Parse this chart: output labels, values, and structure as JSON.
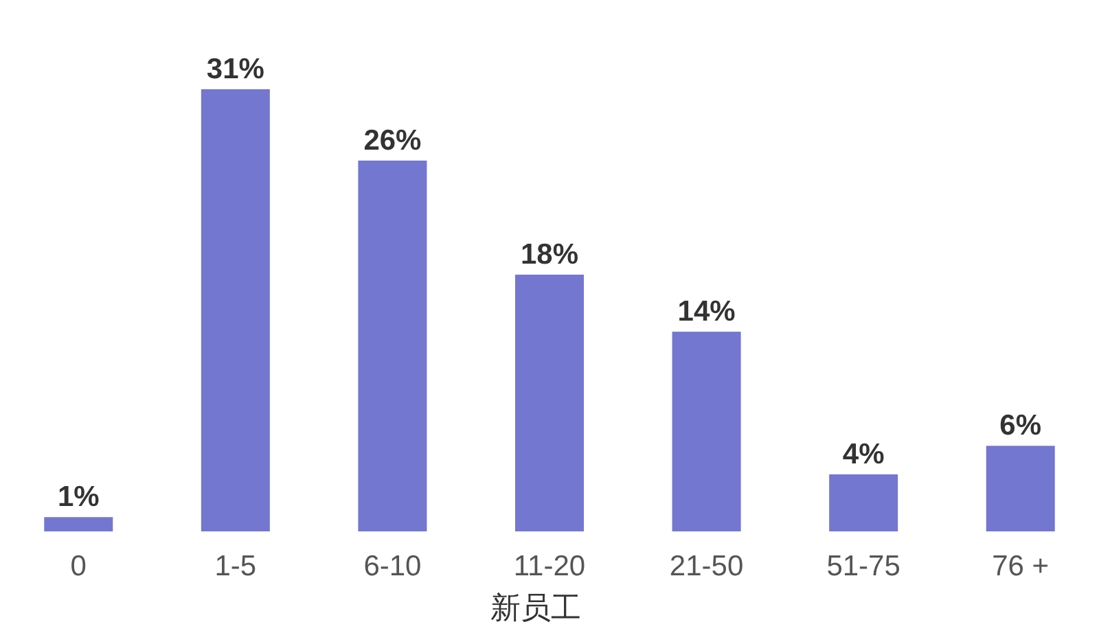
{
  "chart_data": {
    "type": "bar",
    "xlabel": "新员工",
    "categories": [
      "0",
      "1-5",
      "6-10",
      "11-20",
      "21-50",
      "51-75",
      "76 +"
    ],
    "values": [
      1,
      31,
      26,
      18,
      14,
      4,
      6
    ],
    "value_labels": [
      "1%",
      "31%",
      "26%",
      "18%",
      "14%",
      "4%",
      "6%"
    ],
    "color": "#7377d0"
  }
}
